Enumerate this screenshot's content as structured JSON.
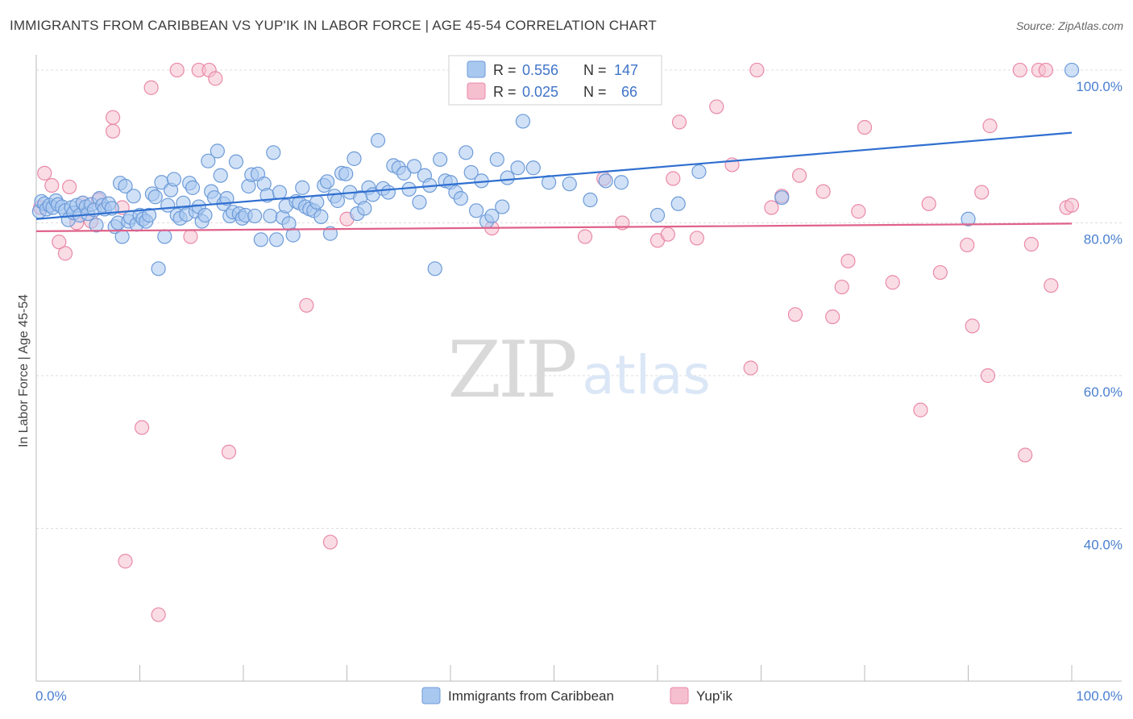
{
  "title": "IMMIGRANTS FROM CARIBBEAN VS YUP'IK IN LABOR FORCE | AGE 45-54 CORRELATION CHART",
  "source": "Source: ZipAtlas.com",
  "watermark": {
    "zip": "ZIP",
    "atlas": "atlas"
  },
  "legend": {
    "rows": [
      {
        "r_label": "R =",
        "r_value": "0.556",
        "n_label": "N =",
        "n_value": "147"
      },
      {
        "r_label": "R =",
        "r_value": "0.025",
        "n_label": "N =",
        "n_value": "66"
      }
    ]
  },
  "bottom_legend": [
    "Immigrants from Caribbean",
    "Yup'ik"
  ],
  "colors": {
    "blue_fill": "#a9c8f0",
    "blue_stroke": "#6d9bd8",
    "blue_line": "#2f6fd0",
    "pink_fill": "#f6bfd0",
    "pink_stroke": "#e98aa8",
    "pink_line": "#e0628a",
    "tick_text": "#4a7fd0",
    "grid": "#dddddd"
  },
  "chart_data": {
    "type": "scatter",
    "title": "IMMIGRANTS FROM CARIBBEAN VS YUP'IK IN LABOR FORCE | AGE 45-54 CORRELATION CHART",
    "xlabel": "",
    "ylabel": "In Labor Force | Age 45-54",
    "xlim": [
      0,
      100
    ],
    "ylim": [
      20,
      102
    ],
    "x_tick_labels": [
      "0.0%",
      "100.0%"
    ],
    "y_ticks": [
      40,
      60,
      80,
      100
    ],
    "y_tick_labels": [
      "40.0%",
      "60.0%",
      "80.0%",
      "100.0%"
    ],
    "grid": true,
    "legend_position": "top-center",
    "series": [
      {
        "name": "Immigrants from Caribbean",
        "r": 0.556,
        "n": 147,
        "trend": {
          "x": [
            0,
            100
          ],
          "y": [
            80.5,
            91.8
          ]
        },
        "points": [
          [
            0.3,
            81.5
          ],
          [
            0.5,
            82.8
          ],
          [
            0.8,
            82.5
          ],
          [
            1.0,
            81.8
          ],
          [
            1.3,
            82.3
          ],
          [
            1.6,
            82.0
          ],
          [
            1.9,
            82.9
          ],
          [
            2.1,
            82.4
          ],
          [
            2.5,
            82.1
          ],
          [
            2.8,
            81.6
          ],
          [
            3.1,
            80.4
          ],
          [
            3.4,
            82.0
          ],
          [
            3.6,
            81.3
          ],
          [
            3.9,
            82.3
          ],
          [
            4.2,
            81.0
          ],
          [
            4.5,
            82.6
          ],
          [
            4.8,
            82.1
          ],
          [
            5.0,
            81.2
          ],
          [
            5.3,
            82.4
          ],
          [
            5.6,
            81.7
          ],
          [
            5.8,
            79.7
          ],
          [
            6.1,
            83.2
          ],
          [
            6.4,
            82.3
          ],
          [
            6.6,
            81.8
          ],
          [
            7.0,
            82.5
          ],
          [
            7.3,
            81.9
          ],
          [
            7.6,
            79.5
          ],
          [
            7.9,
            80.0
          ],
          [
            8.1,
            85.2
          ],
          [
            8.3,
            78.2
          ],
          [
            8.6,
            84.8
          ],
          [
            8.9,
            80.2
          ],
          [
            9.1,
            80.7
          ],
          [
            9.4,
            83.5
          ],
          [
            9.7,
            79.8
          ],
          [
            10.0,
            81.0
          ],
          [
            10.3,
            80.5
          ],
          [
            10.6,
            80.2
          ],
          [
            10.9,
            81.0
          ],
          [
            11.2,
            83.8
          ],
          [
            11.5,
            83.4
          ],
          [
            11.8,
            74.0
          ],
          [
            12.1,
            85.3
          ],
          [
            12.4,
            78.2
          ],
          [
            12.7,
            82.3
          ],
          [
            13.0,
            84.3
          ],
          [
            13.3,
            85.7
          ],
          [
            13.6,
            81.0
          ],
          [
            13.9,
            80.6
          ],
          [
            14.2,
            82.6
          ],
          [
            14.5,
            81.1
          ],
          [
            14.8,
            85.2
          ],
          [
            15.1,
            84.6
          ],
          [
            15.4,
            81.5
          ],
          [
            15.7,
            82.1
          ],
          [
            16.0,
            80.2
          ],
          [
            16.3,
            81.0
          ],
          [
            16.6,
            88.1
          ],
          [
            16.9,
            84.1
          ],
          [
            17.2,
            83.3
          ],
          [
            17.5,
            89.4
          ],
          [
            17.8,
            86.2
          ],
          [
            18.1,
            82.5
          ],
          [
            18.4,
            83.2
          ],
          [
            18.7,
            80.9
          ],
          [
            19.0,
            81.4
          ],
          [
            19.3,
            88.0
          ],
          [
            19.6,
            81.2
          ],
          [
            19.9,
            80.6
          ],
          [
            20.2,
            81.0
          ],
          [
            20.5,
            84.8
          ],
          [
            20.8,
            86.3
          ],
          [
            21.1,
            80.9
          ],
          [
            21.4,
            86.4
          ],
          [
            21.7,
            77.8
          ],
          [
            22.0,
            85.1
          ],
          [
            22.3,
            83.6
          ],
          [
            22.6,
            80.9
          ],
          [
            22.9,
            89.2
          ],
          [
            23.2,
            77.8
          ],
          [
            23.5,
            84.0
          ],
          [
            23.8,
            80.7
          ],
          [
            24.1,
            82.2
          ],
          [
            24.4,
            79.9
          ],
          [
            24.8,
            78.4
          ],
          [
            25.1,
            82.8
          ],
          [
            25.4,
            82.6
          ],
          [
            25.7,
            84.6
          ],
          [
            26.0,
            82.1
          ],
          [
            26.4,
            81.8
          ],
          [
            26.8,
            81.6
          ],
          [
            27.1,
            82.7
          ],
          [
            27.5,
            80.8
          ],
          [
            27.8,
            84.9
          ],
          [
            28.1,
            85.4
          ],
          [
            28.4,
            78.6
          ],
          [
            28.8,
            83.5
          ],
          [
            29.1,
            82.9
          ],
          [
            29.5,
            86.5
          ],
          [
            29.9,
            86.4
          ],
          [
            30.3,
            84.0
          ],
          [
            30.7,
            88.4
          ],
          [
            31.0,
            81.2
          ],
          [
            31.3,
            83.3
          ],
          [
            31.7,
            81.9
          ],
          [
            32.1,
            84.6
          ],
          [
            32.5,
            83.7
          ],
          [
            33.0,
            90.8
          ],
          [
            33.5,
            84.5
          ],
          [
            34.0,
            84.0
          ],
          [
            34.5,
            87.5
          ],
          [
            35.0,
            87.2
          ],
          [
            35.5,
            86.5
          ],
          [
            36.0,
            84.4
          ],
          [
            36.5,
            87.4
          ],
          [
            37.0,
            82.7
          ],
          [
            37.5,
            86.2
          ],
          [
            38.0,
            84.9
          ],
          [
            38.5,
            74.0
          ],
          [
            39.0,
            88.3
          ],
          [
            39.5,
            85.5
          ],
          [
            40.0,
            85.3
          ],
          [
            40.5,
            84.0
          ],
          [
            41.0,
            83.2
          ],
          [
            41.5,
            89.2
          ],
          [
            42.0,
            86.6
          ],
          [
            42.5,
            81.6
          ],
          [
            43.0,
            85.5
          ],
          [
            43.5,
            80.2
          ],
          [
            44.0,
            80.9
          ],
          [
            44.5,
            88.3
          ],
          [
            45.0,
            82.1
          ],
          [
            45.5,
            85.9
          ],
          [
            46.5,
            87.2
          ],
          [
            47.0,
            93.3
          ],
          [
            48.0,
            87.2
          ],
          [
            49.5,
            85.3
          ],
          [
            51.5,
            85.1
          ],
          [
            53.5,
            83.0
          ],
          [
            55.0,
            85.5
          ],
          [
            56.5,
            85.3
          ],
          [
            60.0,
            81.0
          ],
          [
            62.0,
            82.5
          ],
          [
            64.0,
            86.7
          ],
          [
            72.0,
            83.3
          ],
          [
            90.0,
            80.5
          ],
          [
            100.0,
            100.0
          ]
        ]
      },
      {
        "name": "Yup'ik",
        "r": 0.025,
        "n": 66,
        "trend": {
          "x": [
            0,
            100
          ],
          "y": [
            78.9,
            79.9
          ]
        },
        "points": [
          [
            0.4,
            82.0
          ],
          [
            0.8,
            86.5
          ],
          [
            1.5,
            84.9
          ],
          [
            2.2,
            77.5
          ],
          [
            2.8,
            76.0
          ],
          [
            3.2,
            84.7
          ],
          [
            3.9,
            80.0
          ],
          [
            4.5,
            82.6
          ],
          [
            5.3,
            80.2
          ],
          [
            6.0,
            83.0
          ],
          [
            7.4,
            92.0
          ],
          [
            7.4,
            93.8
          ],
          [
            8.3,
            82.0
          ],
          [
            8.6,
            35.7
          ],
          [
            10.2,
            53.2
          ],
          [
            11.1,
            97.7
          ],
          [
            11.8,
            28.7
          ],
          [
            13.6,
            100.0
          ],
          [
            14.9,
            78.2
          ],
          [
            15.7,
            100.0
          ],
          [
            16.7,
            100.0
          ],
          [
            17.3,
            98.9
          ],
          [
            18.6,
            50.0
          ],
          [
            26.1,
            69.2
          ],
          [
            28.4,
            38.2
          ],
          [
            54.8,
            85.8
          ],
          [
            56.6,
            80.0
          ],
          [
            60.0,
            77.7
          ],
          [
            61.0,
            78.5
          ],
          [
            61.5,
            85.8
          ],
          [
            62.1,
            93.2
          ],
          [
            63.8,
            78.0
          ],
          [
            65.7,
            95.2
          ],
          [
            67.2,
            87.6
          ],
          [
            69.0,
            61.0
          ],
          [
            69.6,
            100.0
          ],
          [
            71.0,
            82.0
          ],
          [
            72.0,
            83.5
          ],
          [
            73.3,
            68.0
          ],
          [
            73.7,
            86.2
          ],
          [
            76.0,
            84.1
          ],
          [
            76.9,
            67.7
          ],
          [
            77.8,
            71.6
          ],
          [
            78.4,
            75.0
          ],
          [
            79.4,
            81.5
          ],
          [
            80.0,
            92.5
          ],
          [
            82.7,
            72.2
          ],
          [
            85.4,
            55.5
          ],
          [
            86.2,
            82.5
          ],
          [
            87.3,
            73.5
          ],
          [
            89.9,
            77.1
          ],
          [
            90.4,
            66.5
          ],
          [
            91.3,
            84.0
          ],
          [
            91.9,
            60.0
          ],
          [
            92.1,
            92.7
          ],
          [
            95.0,
            100.0
          ],
          [
            95.5,
            49.6
          ],
          [
            96.1,
            77.2
          ],
          [
            96.8,
            100.0
          ],
          [
            97.5,
            100.0
          ],
          [
            98.0,
            71.8
          ],
          [
            99.5,
            82.0
          ],
          [
            100.0,
            82.3
          ],
          [
            53.0,
            78.2
          ],
          [
            44.0,
            79.3
          ],
          [
            30.0,
            80.5
          ]
        ]
      }
    ]
  }
}
